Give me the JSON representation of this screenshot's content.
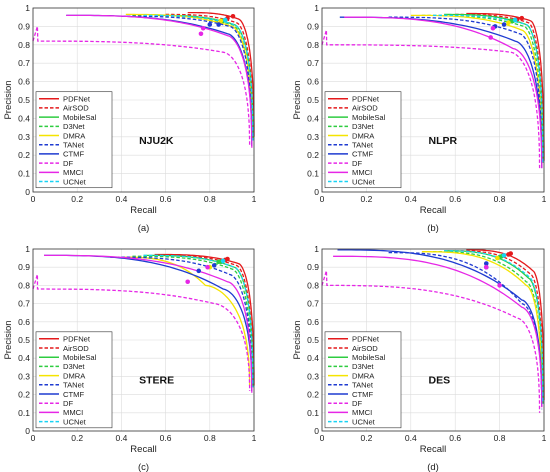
{
  "chart_data": [
    {
      "type": "line",
      "dataset": "NJU2K",
      "caption": "(a)",
      "xlabel": "Recall",
      "ylabel": "Precision",
      "xlim": [
        0,
        1
      ],
      "ylim": [
        0,
        1
      ],
      "xticks": [
        "0",
        "0.2",
        "0.4",
        "0.6",
        "0.8",
        "1"
      ],
      "yticks": [
        "0",
        "0.1",
        "0.2",
        "0.3",
        "0.4",
        "0.5",
        "0.6",
        "0.7",
        "0.8",
        "0.9",
        "1"
      ],
      "grid": true,
      "legend_position": "bottom-left",
      "series": [
        {
          "name": "PDFNet",
          "color": "#e41a1c",
          "dash": false,
          "start": [
            0.7,
            0.975
          ],
          "mid": [
            0.93,
            0.94
          ],
          "end": [
            1.0,
            0.3
          ],
          "marker": [
            0.905,
            0.955
          ]
        },
        {
          "name": "AirSOD",
          "color": "#e41a1c",
          "dash": true,
          "start": [
            0.6,
            0.965
          ],
          "mid": [
            0.92,
            0.92
          ],
          "end": [
            0.995,
            0.29
          ],
          "marker": [
            0.88,
            0.945
          ]
        },
        {
          "name": "MobileSal",
          "color": "#2ecc40",
          "dash": false,
          "start": [
            0.55,
            0.96
          ],
          "mid": [
            0.91,
            0.91
          ],
          "end": [
            0.995,
            0.28
          ],
          "marker": [
            0.86,
            0.93
          ]
        },
        {
          "name": "D3Net",
          "color": "#2ecc40",
          "dash": true,
          "start": [
            0.45,
            0.96
          ],
          "mid": [
            0.9,
            0.91
          ],
          "end": [
            0.99,
            0.27
          ],
          "marker": [
            0.85,
            0.93
          ]
        },
        {
          "name": "DMRA",
          "color": "#f5e400",
          "dash": false,
          "start": [
            0.42,
            0.965
          ],
          "mid": [
            0.9,
            0.9
          ],
          "end": [
            0.99,
            0.27
          ],
          "marker": [
            0.85,
            0.93
          ]
        },
        {
          "name": "TANet",
          "color": "#1f3bd1",
          "dash": true,
          "start": [
            0.4,
            0.955
          ],
          "mid": [
            0.89,
            0.9
          ],
          "end": [
            0.99,
            0.26
          ],
          "marker": [
            0.84,
            0.91
          ]
        },
        {
          "name": "CTMF",
          "color": "#1f3bd1",
          "dash": false,
          "start": [
            0.15,
            0.96
          ],
          "mid": [
            0.88,
            0.86
          ],
          "end": [
            0.99,
            0.25
          ],
          "marker": [
            0.8,
            0.91
          ]
        },
        {
          "name": "DF",
          "color": "#e627e6",
          "dash": true,
          "start": [
            0.0,
            0.82
          ],
          "mid": [
            0.86,
            0.76
          ],
          "end": [
            0.98,
            0.25
          ],
          "marker": [
            0.76,
            0.86
          ],
          "hook": [
            0.02,
            0.9
          ]
        },
        {
          "name": "MMCI",
          "color": "#e627e6",
          "dash": false,
          "start": [
            0.15,
            0.96
          ],
          "mid": [
            0.88,
            0.85
          ],
          "end": [
            0.99,
            0.24
          ],
          "marker": [
            0.77,
            0.89
          ]
        },
        {
          "name": "UCNet",
          "color": "#19d3f3",
          "dash": true,
          "start": [
            0.5,
            0.96
          ],
          "mid": [
            0.91,
            0.91
          ],
          "end": [
            0.995,
            0.28
          ],
          "marker": [
            0.87,
            0.935
          ]
        }
      ]
    },
    {
      "type": "line",
      "dataset": "NLPR",
      "caption": "(b)",
      "xlabel": "Recall",
      "ylabel": "Precision",
      "xlim": [
        0,
        1
      ],
      "ylim": [
        0,
        1
      ],
      "xticks": [
        "0",
        "0.2",
        "0.4",
        "0.6",
        "0.8",
        "1"
      ],
      "yticks": [
        "0",
        "0.1",
        "0.2",
        "0.3",
        "0.4",
        "0.5",
        "0.6",
        "0.7",
        "0.8",
        "0.9",
        "1"
      ],
      "grid": true,
      "legend_position": "bottom-left",
      "series": [
        {
          "name": "PDFNet",
          "color": "#e41a1c",
          "dash": false,
          "start": [
            0.65,
            0.97
          ],
          "mid": [
            0.94,
            0.93
          ],
          "end": [
            1.0,
            0.17
          ],
          "marker": [
            0.9,
            0.945
          ]
        },
        {
          "name": "AirSOD",
          "color": "#e41a1c",
          "dash": true,
          "start": [
            0.6,
            0.965
          ],
          "mid": [
            0.93,
            0.92
          ],
          "end": [
            0.995,
            0.16
          ],
          "marker": [
            0.88,
            0.94
          ]
        },
        {
          "name": "MobileSal",
          "color": "#2ecc40",
          "dash": false,
          "start": [
            0.55,
            0.965
          ],
          "mid": [
            0.92,
            0.91
          ],
          "end": [
            0.995,
            0.16
          ],
          "marker": [
            0.86,
            0.93
          ]
        },
        {
          "name": "D3Net",
          "color": "#2ecc40",
          "dash": true,
          "start": [
            0.45,
            0.96
          ],
          "mid": [
            0.91,
            0.9
          ],
          "end": [
            0.99,
            0.15
          ],
          "marker": [
            0.85,
            0.93
          ]
        },
        {
          "name": "DMRA",
          "color": "#f5e400",
          "dash": false,
          "start": [
            0.4,
            0.96
          ],
          "mid": [
            0.9,
            0.88
          ],
          "end": [
            0.99,
            0.14
          ],
          "marker": [
            0.84,
            0.92
          ]
        },
        {
          "name": "TANet",
          "color": "#1f3bd1",
          "dash": true,
          "start": [
            0.3,
            0.95
          ],
          "mid": [
            0.89,
            0.86
          ],
          "end": [
            0.99,
            0.14
          ],
          "marker": [
            0.82,
            0.91
          ]
        },
        {
          "name": "CTMF",
          "color": "#1f3bd1",
          "dash": false,
          "start": [
            0.08,
            0.95
          ],
          "mid": [
            0.87,
            0.82
          ],
          "end": [
            0.99,
            0.13
          ],
          "marker": [
            0.78,
            0.9
          ]
        },
        {
          "name": "DF",
          "color": "#e627e6",
          "dash": true,
          "start": [
            0.0,
            0.8
          ],
          "mid": [
            0.85,
            0.76
          ],
          "end": [
            0.98,
            0.13
          ],
          "marker": [
            0.76,
            0.84
          ],
          "hook": [
            0.02,
            0.88
          ]
        },
        {
          "name": "MMCI",
          "color": "#e627e6",
          "dash": false,
          "start": [
            0.1,
            0.95
          ],
          "mid": [
            0.86,
            0.78
          ],
          "end": [
            0.99,
            0.13
          ],
          "marker": [
            0.77,
            0.89
          ]
        },
        {
          "name": "UCNet",
          "color": "#19d3f3",
          "dash": true,
          "start": [
            0.5,
            0.96
          ],
          "mid": [
            0.92,
            0.91
          ],
          "end": [
            0.995,
            0.16
          ],
          "marker": [
            0.87,
            0.935
          ]
        }
      ]
    },
    {
      "type": "line",
      "dataset": "STERE",
      "caption": "(c)",
      "xlabel": "Recall",
      "ylabel": "Precision",
      "xlim": [
        0,
        1
      ],
      "ylim": [
        0,
        1
      ],
      "xticks": [
        "0",
        "0.2",
        "0.4",
        "0.6",
        "0.8",
        "1"
      ],
      "yticks": [
        "0",
        "0.1",
        "0.2",
        "0.3",
        "0.4",
        "0.5",
        "0.6",
        "0.7",
        "0.8",
        "0.9",
        "1"
      ],
      "grid": true,
      "legend_position": "bottom-left",
      "series": [
        {
          "name": "PDFNet",
          "color": "#e41a1c",
          "dash": false,
          "start": [
            0.55,
            0.97
          ],
          "mid": [
            0.93,
            0.92
          ],
          "end": [
            1.0,
            0.25
          ],
          "marker": [
            0.88,
            0.945
          ]
        },
        {
          "name": "AirSOD",
          "color": "#e41a1c",
          "dash": true,
          "start": [
            0.55,
            0.965
          ],
          "mid": [
            0.92,
            0.91
          ],
          "end": [
            0.995,
            0.24
          ],
          "marker": [
            0.87,
            0.94
          ]
        },
        {
          "name": "MobileSal",
          "color": "#2ecc40",
          "dash": false,
          "start": [
            0.5,
            0.965
          ],
          "mid": [
            0.91,
            0.9
          ],
          "end": [
            0.995,
            0.24
          ],
          "marker": [
            0.85,
            0.93
          ]
        },
        {
          "name": "D3Net",
          "color": "#2ecc40",
          "dash": true,
          "start": [
            0.45,
            0.96
          ],
          "mid": [
            0.9,
            0.89
          ],
          "end": [
            0.99,
            0.23
          ],
          "marker": [
            0.84,
            0.93
          ]
        },
        {
          "name": "DMRA",
          "color": "#f5e400",
          "dash": false,
          "start": [
            0.4,
            0.955
          ],
          "mid": [
            0.78,
            0.8
          ],
          "end": [
            0.98,
            0.25
          ],
          "marker": [
            0.8,
            0.9
          ]
        },
        {
          "name": "TANet",
          "color": "#1f3bd1",
          "dash": true,
          "start": [
            0.35,
            0.955
          ],
          "mid": [
            0.89,
            0.86
          ],
          "end": [
            0.99,
            0.22
          ],
          "marker": [
            0.82,
            0.91
          ]
        },
        {
          "name": "CTMF",
          "color": "#1f3bd1",
          "dash": false,
          "start": [
            0.05,
            0.965
          ],
          "mid": [
            0.86,
            0.78
          ],
          "end": [
            0.99,
            0.22
          ],
          "marker": [
            0.75,
            0.88
          ]
        },
        {
          "name": "DF",
          "color": "#e627e6",
          "dash": true,
          "start": [
            0.0,
            0.78
          ],
          "mid": [
            0.82,
            0.7
          ],
          "end": [
            0.98,
            0.22
          ],
          "marker": [
            0.7,
            0.82
          ],
          "hook": [
            0.02,
            0.86
          ]
        },
        {
          "name": "MMCI",
          "color": "#e627e6",
          "dash": false,
          "start": [
            0.05,
            0.965
          ],
          "mid": [
            0.88,
            0.82
          ],
          "end": [
            0.99,
            0.21
          ],
          "marker": [
            0.79,
            0.9
          ]
        },
        {
          "name": "UCNet",
          "color": "#19d3f3",
          "dash": true,
          "start": [
            0.5,
            0.965
          ],
          "mid": [
            0.91,
            0.9
          ],
          "end": [
            0.995,
            0.24
          ],
          "marker": [
            0.86,
            0.935
          ]
        }
      ]
    },
    {
      "type": "line",
      "dataset": "DES",
      "caption": "(d)",
      "xlabel": "Recall",
      "ylabel": "Precision",
      "xlim": [
        0,
        1
      ],
      "ylim": [
        0,
        1
      ],
      "xticks": [
        "0",
        "0.2",
        "0.4",
        "0.6",
        "0.8",
        "1"
      ],
      "yticks": [
        "0",
        "0.1",
        "0.2",
        "0.3",
        "0.4",
        "0.5",
        "0.6",
        "0.7",
        "0.8",
        "0.9",
        "1"
      ],
      "grid": true,
      "legend_position": "bottom-left",
      "series": [
        {
          "name": "PDFNet",
          "color": "#e41a1c",
          "dash": false,
          "start": [
            0.65,
            0.995
          ],
          "mid": [
            0.95,
            0.88
          ],
          "end": [
            1.0,
            0.17
          ],
          "marker": [
            0.85,
            0.975
          ]
        },
        {
          "name": "AirSOD",
          "color": "#e41a1c",
          "dash": true,
          "start": [
            0.6,
            0.99
          ],
          "mid": [
            0.94,
            0.86
          ],
          "end": [
            0.995,
            0.16
          ],
          "marker": [
            0.84,
            0.97
          ]
        },
        {
          "name": "MobileSal",
          "color": "#2ecc40",
          "dash": false,
          "start": [
            0.55,
            0.99
          ],
          "mid": [
            0.93,
            0.84
          ],
          "end": [
            0.995,
            0.15
          ],
          "marker": [
            0.81,
            0.96
          ]
        },
        {
          "name": "D3Net",
          "color": "#2ecc40",
          "dash": true,
          "start": [
            0.5,
            0.985
          ],
          "mid": [
            0.92,
            0.82
          ],
          "end": [
            0.99,
            0.15
          ],
          "marker": [
            0.8,
            0.955
          ]
        },
        {
          "name": "DMRA",
          "color": "#f5e400",
          "dash": false,
          "start": [
            0.45,
            0.985
          ],
          "mid": [
            0.92,
            0.8
          ],
          "end": [
            0.99,
            0.14
          ],
          "marker": [
            0.79,
            0.95
          ]
        },
        {
          "name": "TANet",
          "color": "#1f3bd1",
          "dash": true,
          "start": [
            0.3,
            0.98
          ],
          "mid": [
            0.9,
            0.7
          ],
          "end": [
            0.99,
            0.12
          ],
          "marker": [
            0.74,
            0.9
          ]
        },
        {
          "name": "CTMF",
          "color": "#1f3bd1",
          "dash": false,
          "start": [
            0.07,
            0.995
          ],
          "mid": [
            0.9,
            0.72
          ],
          "end": [
            0.99,
            0.14
          ],
          "marker": [
            0.74,
            0.92
          ]
        },
        {
          "name": "DF",
          "color": "#e627e6",
          "dash": true,
          "start": [
            0.0,
            0.8
          ],
          "mid": [
            0.88,
            0.62
          ],
          "end": [
            0.98,
            0.1
          ],
          "marker": [
            0.8,
            0.8
          ],
          "hook": [
            0.02,
            0.88
          ]
        },
        {
          "name": "MMCI",
          "color": "#e627e6",
          "dash": false,
          "start": [
            0.05,
            0.96
          ],
          "mid": [
            0.9,
            0.68
          ],
          "end": [
            0.99,
            0.13
          ],
          "marker": [
            0.74,
            0.9
          ]
        },
        {
          "name": "UCNet",
          "color": "#19d3f3",
          "dash": true,
          "start": [
            0.55,
            0.99
          ],
          "mid": [
            0.93,
            0.85
          ],
          "end": [
            0.995,
            0.15
          ],
          "marker": [
            0.82,
            0.965
          ]
        }
      ]
    }
  ]
}
